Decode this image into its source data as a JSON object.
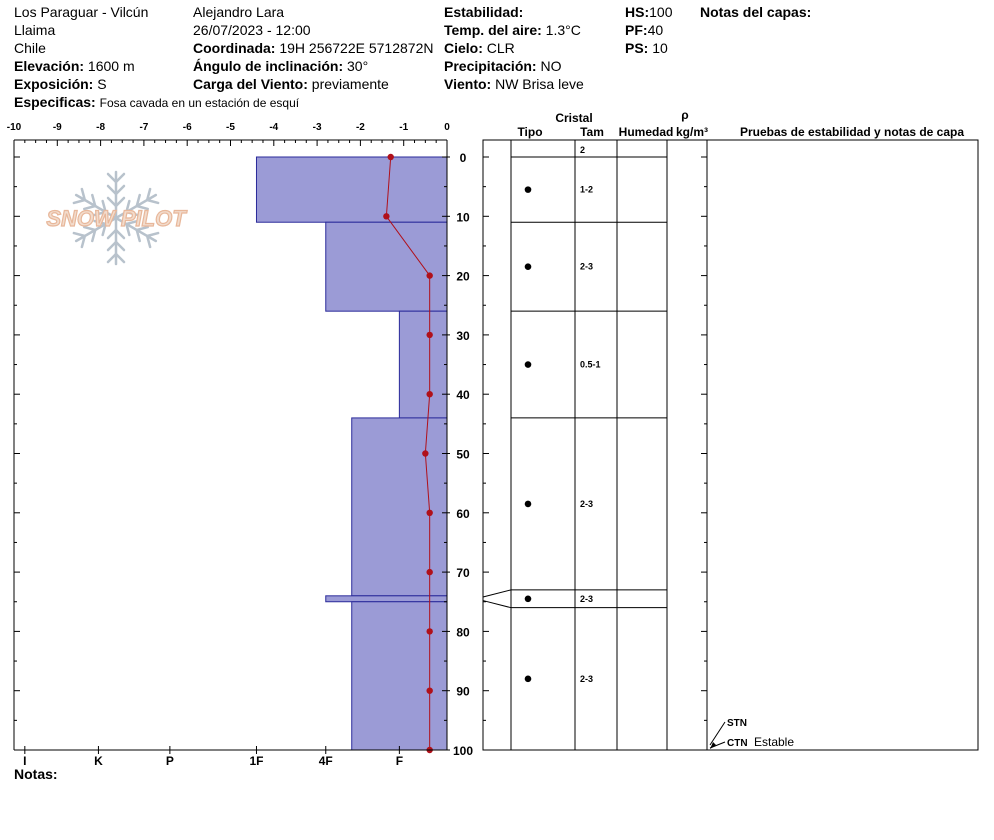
{
  "header": {
    "location": "Los Paraguar - Vilcún",
    "zone": "Llaima",
    "country": "Chile",
    "elevation_label": "Elevación:",
    "elevation_value": "1600 m",
    "aspect_label": "Exposición:",
    "aspect_value": "S",
    "specifics_label": "Especificas:",
    "specifics_value": "Fosa cavada en un estación de esquí",
    "observer": "Alejandro Lara",
    "datetime": "26/07/2023 - 12:00",
    "coord_label": "Coordinada:",
    "coord_value": "19H 256722E 5712872N",
    "slope_label": "Ángulo de inclinación:",
    "slope_value": "30°",
    "wind_load_label": "Carga del Viento:",
    "wind_load_value": "previamente",
    "stability_label": "Estabilidad:",
    "air_temp_label": "Temp. del aire:",
    "air_temp_value": "1.3°C",
    "sky_label": "Cielo:",
    "sky_value": "CLR",
    "precip_label": "Precipitación:",
    "precip_value": "NO",
    "wind_label": "Viento:",
    "wind_value": "NW Brisa leve",
    "hs_label": "HS:",
    "hs_value": "100",
    "pf_label": "PF:",
    "pf_value": "40",
    "ps_label": "PS:",
    "ps_value": "10",
    "layer_notes_label": "Notas del capas:",
    "notes_label": "Notas:"
  },
  "logo_text": "SNOW PILOT",
  "colors": {
    "hardness_fill": "#9b9bd6",
    "hardness_stroke": "#2a2a9a",
    "temp_line": "#b0101a",
    "grid": "#000000"
  },
  "chart_data": {
    "type": "snow-profile",
    "temp_axis": {
      "ticks": [
        "-10",
        "-9",
        "-8",
        "-7",
        "-6",
        "-5",
        "-4",
        "-3",
        "-2",
        "-1",
        "0"
      ],
      "range": [
        -10,
        0
      ]
    },
    "depth_axis": {
      "ticks": [
        "0",
        "10",
        "20",
        "30",
        "40",
        "50",
        "60",
        "70",
        "80",
        "90",
        "100"
      ],
      "range": [
        0,
        100
      ]
    },
    "hardness_axis": {
      "labels": [
        "I",
        "K",
        "P",
        "1F",
        "4F",
        "F"
      ]
    },
    "hardness_layers": [
      {
        "top": 0,
        "bottom": 11,
        "hardness_pos": 4.4
      },
      {
        "top": 11,
        "bottom": 26,
        "hardness_pos": 2.8
      },
      {
        "top": 26,
        "bottom": 44,
        "hardness_pos": 1.1
      },
      {
        "top": 44,
        "bottom": 74,
        "hardness_pos": 2.2
      },
      {
        "top": 74,
        "bottom": 75,
        "hardness_pos": 2.8
      },
      {
        "top": 75,
        "bottom": 100,
        "hardness_pos": 2.2
      }
    ],
    "temperature_profile": [
      {
        "depth": 0,
        "temp": -1.3
      },
      {
        "depth": 10,
        "temp": -1.4
      },
      {
        "depth": 20,
        "temp": -0.4
      },
      {
        "depth": 30,
        "temp": -0.4
      },
      {
        "depth": 40,
        "temp": -0.4
      },
      {
        "depth": 50,
        "temp": -0.5
      },
      {
        "depth": 60,
        "temp": -0.4
      },
      {
        "depth": 70,
        "temp": -0.4
      },
      {
        "depth": 80,
        "temp": -0.4
      },
      {
        "depth": 90,
        "temp": -0.4
      },
      {
        "depth": 100,
        "temp": -0.4
      }
    ],
    "layer_table": {
      "cristal_header": "Cristal",
      "rho_header": "ρ",
      "columns": [
        "Tipo",
        "Tam",
        "Humedad",
        "kg/m³",
        "Pruebas de estabilidad y notas de capa"
      ],
      "boundaries": [
        0,
        11,
        26,
        44,
        73,
        76,
        100
      ],
      "layers": [
        {
          "top": 0,
          "bottom": 11,
          "size": "1-2",
          "has_type": true
        },
        {
          "top": 11,
          "bottom": 26,
          "size": "2-3",
          "has_type": true
        },
        {
          "top": 26,
          "bottom": 44,
          "size": "0.5-1",
          "has_type": true
        },
        {
          "top": 44,
          "bottom": 73,
          "size": "2-3",
          "has_type": true
        },
        {
          "top": 73,
          "bottom": 76,
          "size": "2-3",
          "has_type": true
        },
        {
          "top": 76,
          "bottom": 100,
          "size": "2-3",
          "has_type": true
        }
      ],
      "surface_size": "2"
    },
    "stability_tests": [
      {
        "code": "STN",
        "note": ""
      },
      {
        "code": "CTN",
        "note": "Estable"
      }
    ]
  }
}
